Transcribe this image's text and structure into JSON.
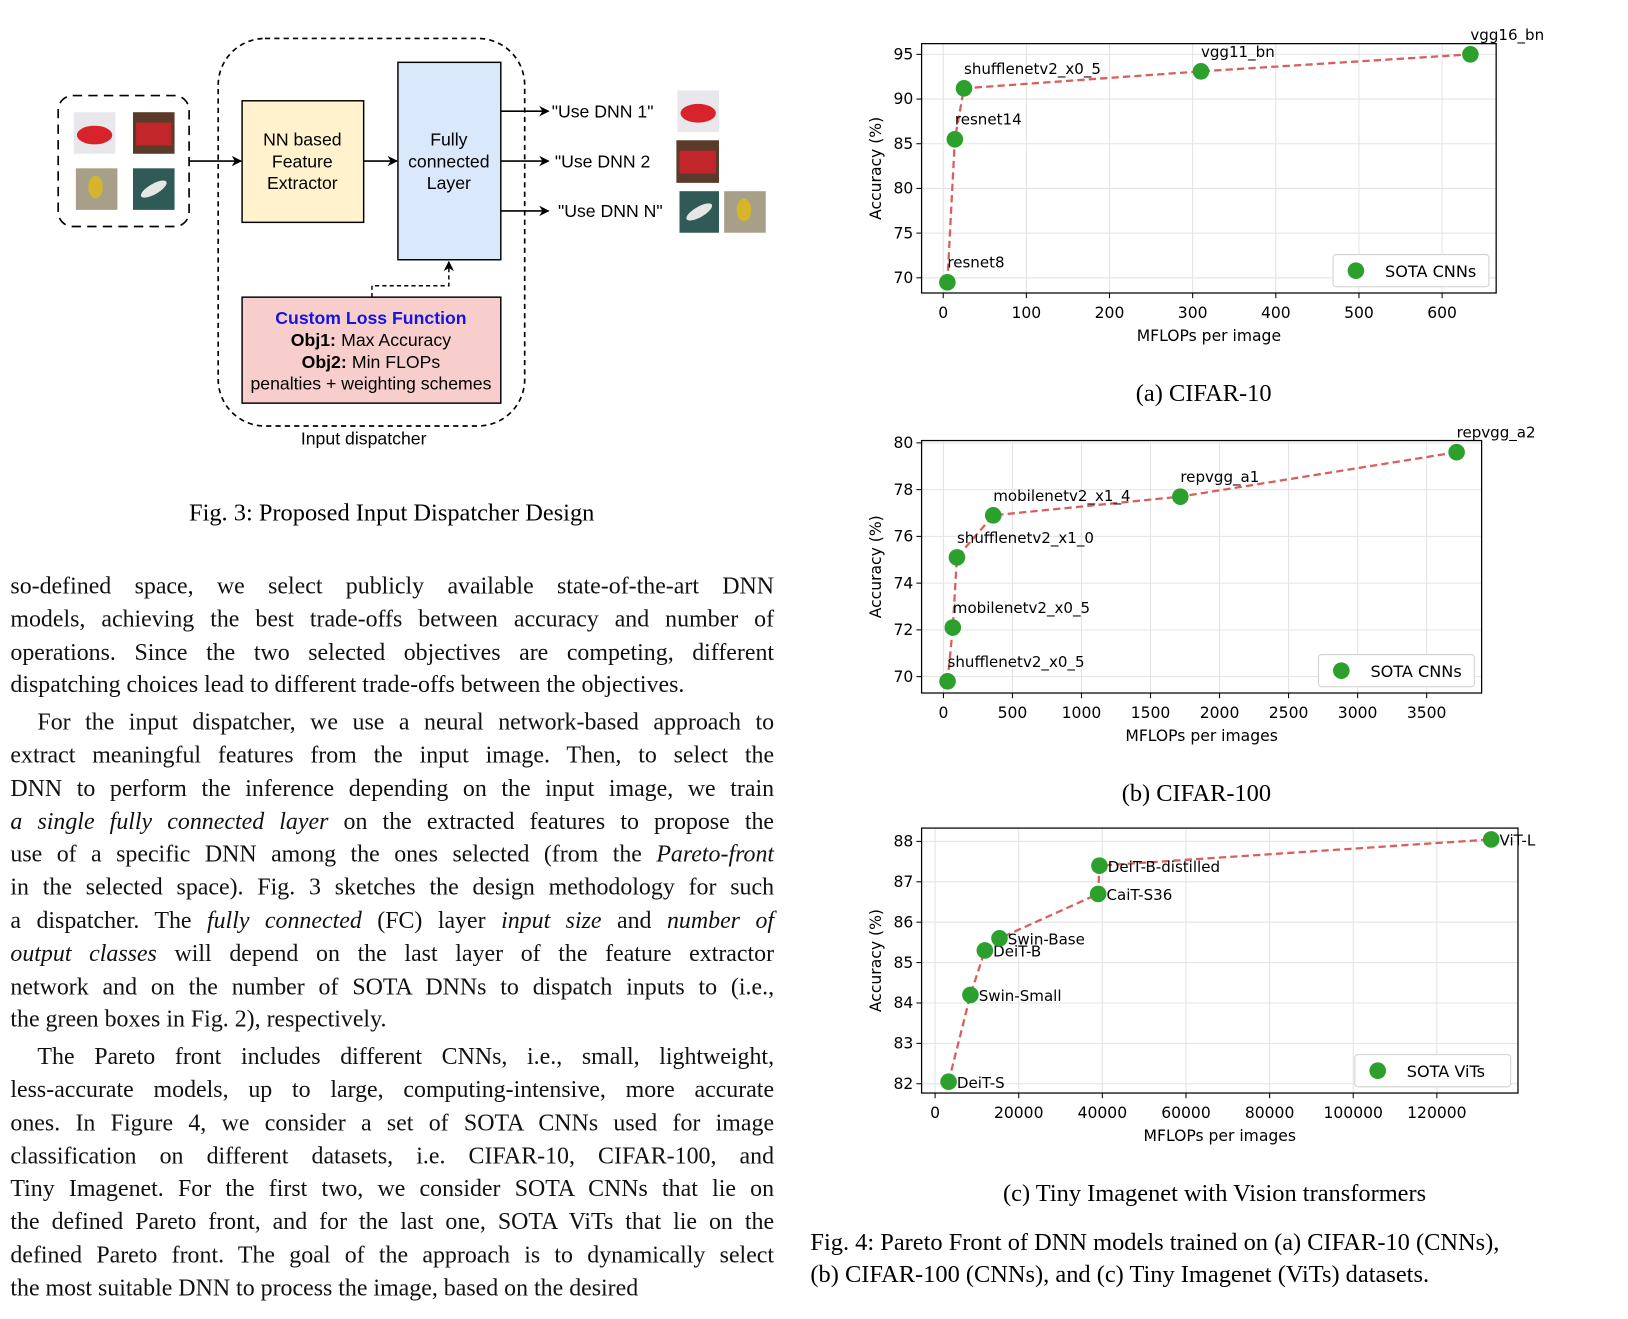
{
  "figure3": {
    "feature_extractor": [
      "NN based",
      "Feature",
      "Extractor"
    ],
    "fc_layer": [
      "Fully",
      "connected",
      "Layer"
    ],
    "outputs": [
      "\"Use DNN 1\"",
      "\"Use DNN 2",
      "\"Use DNN N\""
    ],
    "loss": {
      "title": "Custom Loss Function",
      "obj1_label": "Obj1:",
      "obj1": "Max Accuracy",
      "obj2_label": "Obj2:",
      "obj2": "Min FLOPs",
      "note": "penalties + weighting schemes"
    },
    "container_label": "Input dispatcher",
    "caption": "Fig. 3: Proposed Input Dispatcher Design"
  },
  "paragraphs": [
    {
      "lines": [
        [
          "so-defined space, we select publicly available state-of-the-art DNN"
        ],
        [
          "models, achieving the best trade-offs between accuracy and number of"
        ],
        [
          "operations. Since the two selected objectives are competing, different"
        ],
        [
          "dispatching choices lead to different trade-offs between the objectives."
        ]
      ]
    },
    {
      "lines": [
        [
          "For the input dispatcher, we use a neural network-based approach to"
        ],
        [
          "extract meaningful features from the input image. Then, to select the"
        ],
        [
          "DNN to perform the inference depending on the input image, we train"
        ],
        [
          {
            "text": "a single fully connected layer",
            "style": "italic"
          },
          " on the extracted features to propose the"
        ],
        [
          "use of a specific DNN among the ones selected (from the ",
          {
            "text": "Pareto-front",
            "style": "italic"
          }
        ],
        [
          "in the selected space). Fig. 3 sketches the design methodology for such"
        ],
        [
          "a dispatcher. The ",
          {
            "text": "fully connected",
            "style": "italic"
          },
          " (FC) layer ",
          {
            "text": "input size",
            "style": "italic"
          },
          " and ",
          {
            "text": "number of",
            "style": "italic"
          }
        ],
        [
          {
            "text": "output classes",
            "style": "italic"
          },
          " will depend on the last layer of the feature extractor"
        ],
        [
          "network and on the number of SOTA DNNs to dispatch inputs to (i.e.,"
        ],
        [
          "the green boxes in Fig. 2), respectively."
        ]
      ]
    },
    {
      "lines": [
        [
          "The Pareto front includes different CNNs, i.e., small, lightweight,"
        ],
        [
          "less-accurate models, up to large, computing-intensive, more accurate"
        ],
        [
          "ones. In Figure 4, we consider a set of SOTA CNNs used for image"
        ],
        [
          "classification on different datasets, i.e. CIFAR-10, CIFAR-100, and"
        ],
        [
          "Tiny Imagenet. For the first two, we consider SOTA CNNs that lie on"
        ],
        [
          "the defined Pareto front, and for the last one, SOTA ViTs that lie on the"
        ],
        [
          "defined Pareto front. The goal of the approach is to dynamically select"
        ],
        [
          "the most suitable DNN to process the image, based on the desired"
        ]
      ]
    }
  ],
  "chart_data": [
    {
      "type": "scatter",
      "caption": "(a) CIFAR-10",
      "xlabel": "MFLOPs per image",
      "ylabel": "Accuracy (%)",
      "x": [
        5,
        14,
        25,
        310,
        634
      ],
      "labels": [
        "resnet8",
        "resnet14",
        "shufflenetv2_x0_5",
        "vgg11_bn",
        "vgg16_bn"
      ],
      "series": [
        {
          "name": "SOTA CNNs",
          "color": "#2ca02c",
          "line_color": "#d9605a",
          "line_style": "dashed",
          "values": [
            69.5,
            85.5,
            91.2,
            93.1,
            95.0
          ]
        }
      ],
      "xlim": [
        -26,
        665
      ],
      "ylim": [
        68.3,
        96.2
      ],
      "xticks": [
        0,
        100,
        200,
        300,
        400,
        500,
        600
      ],
      "yticks": [
        70,
        75,
        80,
        85,
        90,
        95
      ],
      "grid": true,
      "legend": "lower right",
      "label_position": "above"
    },
    {
      "type": "scatter",
      "caption": "(b) CIFAR-100",
      "xlabel": "MFLOPs per images",
      "ylabel": "Accuracy (%)",
      "x": [
        30,
        68,
        98,
        361,
        1716,
        3717
      ],
      "labels": [
        "shufflenetv2_x0_5",
        "mobilenetv2_x0_5",
        "shufflenetv2_x1_0",
        "mobilenetv2_x1_4",
        "repvgg_a1",
        "repvgg_a2"
      ],
      "series": [
        {
          "name": "SOTA CNNs",
          "color": "#2ca02c",
          "line_color": "#d9605a",
          "line_style": "dashed",
          "values": [
            69.8,
            72.1,
            75.1,
            76.9,
            77.7,
            79.6
          ]
        }
      ],
      "xlim": [
        -158,
        3898
      ],
      "ylim": [
        69.3,
        80.1
      ],
      "xticks": [
        0,
        500,
        1000,
        1500,
        2000,
        2500,
        3000,
        3500
      ],
      "yticks": [
        70,
        72,
        74,
        76,
        78,
        80
      ],
      "grid": true,
      "legend": "lower right",
      "label_position": "above"
    },
    {
      "type": "scatter",
      "caption": "(c) Tiny Imagenet with Vision transformers",
      "xlabel": "MFLOPs per images",
      "ylabel": "Accuracy (%)",
      "x": [
        3230,
        8450,
        11900,
        15400,
        39000,
        39300,
        133000
      ],
      "labels": [
        "DeiT-S",
        "Swin-Small",
        "DeiT-B",
        "Swin-Base",
        "CaiT-S36",
        "DeiT-B-distilled",
        "ViT-L"
      ],
      "series": [
        {
          "name": "SOTA ViTs",
          "color": "#2ca02c",
          "line_color": "#d9605a",
          "line_style": "dashed",
          "values": [
            82.05,
            84.2,
            85.3,
            85.6,
            86.7,
            87.4,
            88.05
          ]
        }
      ],
      "xlim": [
        -3230,
        139400
      ],
      "ylim": [
        81.77,
        88.33
      ],
      "xticks": [
        0,
        20000,
        40000,
        60000,
        80000,
        100000,
        120000
      ],
      "yticks": [
        82,
        83,
        84,
        85,
        86,
        87,
        88
      ],
      "grid": true,
      "legend": "lower right",
      "label_position": "right"
    }
  ],
  "figure4_caption": [
    "Fig. 4: Pareto Front of DNN models trained on (a) CIFAR-10 (CNNs),",
    "(b) CIFAR-100 (CNNs), and (c) Tiny Imagenet (ViTs) datasets."
  ]
}
